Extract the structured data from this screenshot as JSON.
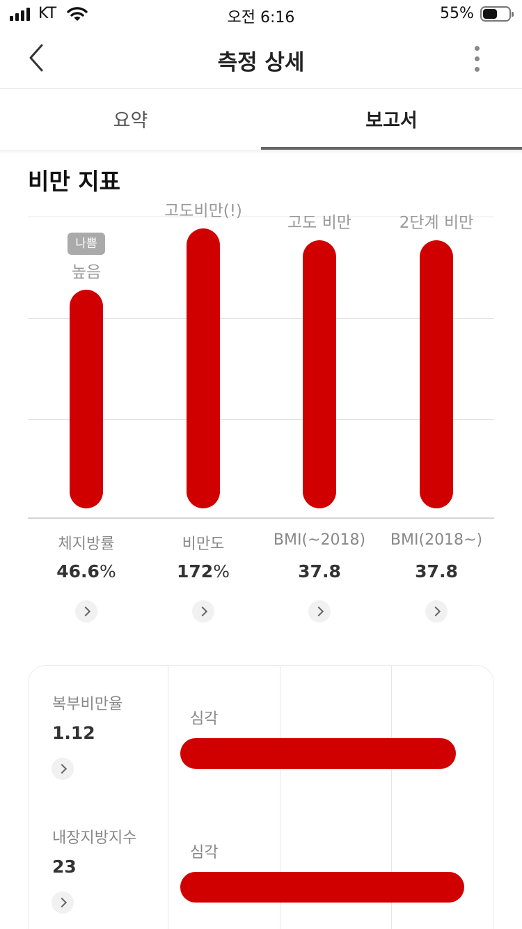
{
  "status_bar": {
    "carrier": "KT",
    "time": "오전 6:16",
    "battery_percent": "55%",
    "battery_level": 0.55
  },
  "nav": {
    "title": "측정 상세",
    "back_icon": "chevron-left-icon",
    "more_icon": "more-vertical-icon"
  },
  "tabs": [
    {
      "label": "요약",
      "active": false
    },
    {
      "label": "보고서",
      "active": true
    }
  ],
  "section_title": "비만 지표",
  "colors": {
    "bar": "#d00000",
    "badge": "#aaaaaa",
    "tab_indicator": "#666666"
  },
  "chart_data": {
    "type": "bar",
    "categories": [
      "체지방률",
      "비만도",
      "BMI(~2018)",
      "BMI(2018~)"
    ],
    "values": [
      46.6,
      172,
      37.8,
      37.8
    ],
    "bar_levels": [
      0.75,
      0.96,
      0.92,
      0.92
    ],
    "level_labels": [
      "높음",
      "고도비만(!)",
      "고도 비만",
      "2단계 비만"
    ],
    "value_labels": [
      "46.6",
      "172",
      "37.8",
      "37.8"
    ],
    "value_units": [
      "%",
      "%",
      "",
      ""
    ],
    "badge": {
      "category_index": 0,
      "text": "나쁨"
    },
    "grid": true
  },
  "abdominal": {
    "name": "복부비만율",
    "value": "1.12",
    "level": "심각",
    "bar_level": 0.99
  },
  "visceral": {
    "name": "내장지방지수",
    "value": "23",
    "level": "심각",
    "bar_level": 1.02
  }
}
